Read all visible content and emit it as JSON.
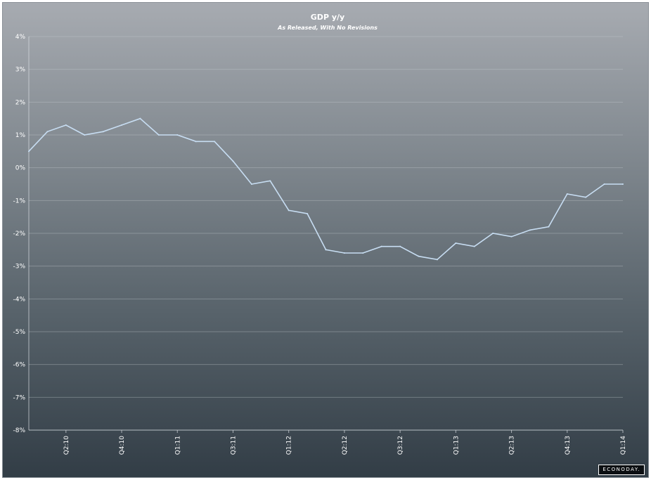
{
  "chart_data": {
    "type": "line",
    "title": "GDP y/y",
    "subtitle": "As Released, With No Revisions",
    "ylim": [
      -8,
      4
    ],
    "y_ticks": [
      {
        "value": 4,
        "label": "4%"
      },
      {
        "value": 3,
        "label": "3%"
      },
      {
        "value": 2,
        "label": "2%"
      },
      {
        "value": 1,
        "label": "1%"
      },
      {
        "value": 0,
        "label": "0%"
      },
      {
        "value": -1,
        "label": "-1%"
      },
      {
        "value": -2,
        "label": "-2%"
      },
      {
        "value": -3,
        "label": "-3%"
      },
      {
        "value": -4,
        "label": "-4%"
      },
      {
        "value": -5,
        "label": "-5%"
      },
      {
        "value": -6,
        "label": "-6%"
      },
      {
        "value": -7,
        "label": "-7%"
      },
      {
        "value": -8,
        "label": "-8%"
      }
    ],
    "x_ticks": [
      {
        "index": 2,
        "label": "Q2:10"
      },
      {
        "index": 5,
        "label": "Q4:10"
      },
      {
        "index": 8,
        "label": "Q1:11"
      },
      {
        "index": 11,
        "label": "Q3:11"
      },
      {
        "index": 14,
        "label": "Q1:12"
      },
      {
        "index": 17,
        "label": "Q2:12"
      },
      {
        "index": 20,
        "label": "Q3:12"
      },
      {
        "index": 23,
        "label": "Q1:13"
      },
      {
        "index": 26,
        "label": "Q2:13"
      },
      {
        "index": 29,
        "label": "Q4:13"
      },
      {
        "index": 32,
        "label": "Q1:14"
      }
    ],
    "grid": true,
    "legend": "none",
    "series": [
      {
        "color": "#c7ddf2",
        "values": [
          0.5,
          1.1,
          1.3,
          1.0,
          1.1,
          1.3,
          1.5,
          1.0,
          1.0,
          0.8,
          0.8,
          0.2,
          -0.5,
          -0.4,
          -1.3,
          -1.4,
          -2.5,
          -2.6,
          -2.6,
          -2.4,
          -2.4,
          -2.7,
          -2.8,
          -2.3,
          -2.4,
          -2.0,
          -2.1,
          -1.9,
          -1.8,
          -0.8,
          -0.9,
          -0.5,
          -0.5
        ]
      }
    ]
  },
  "brand": "ECONODAY."
}
